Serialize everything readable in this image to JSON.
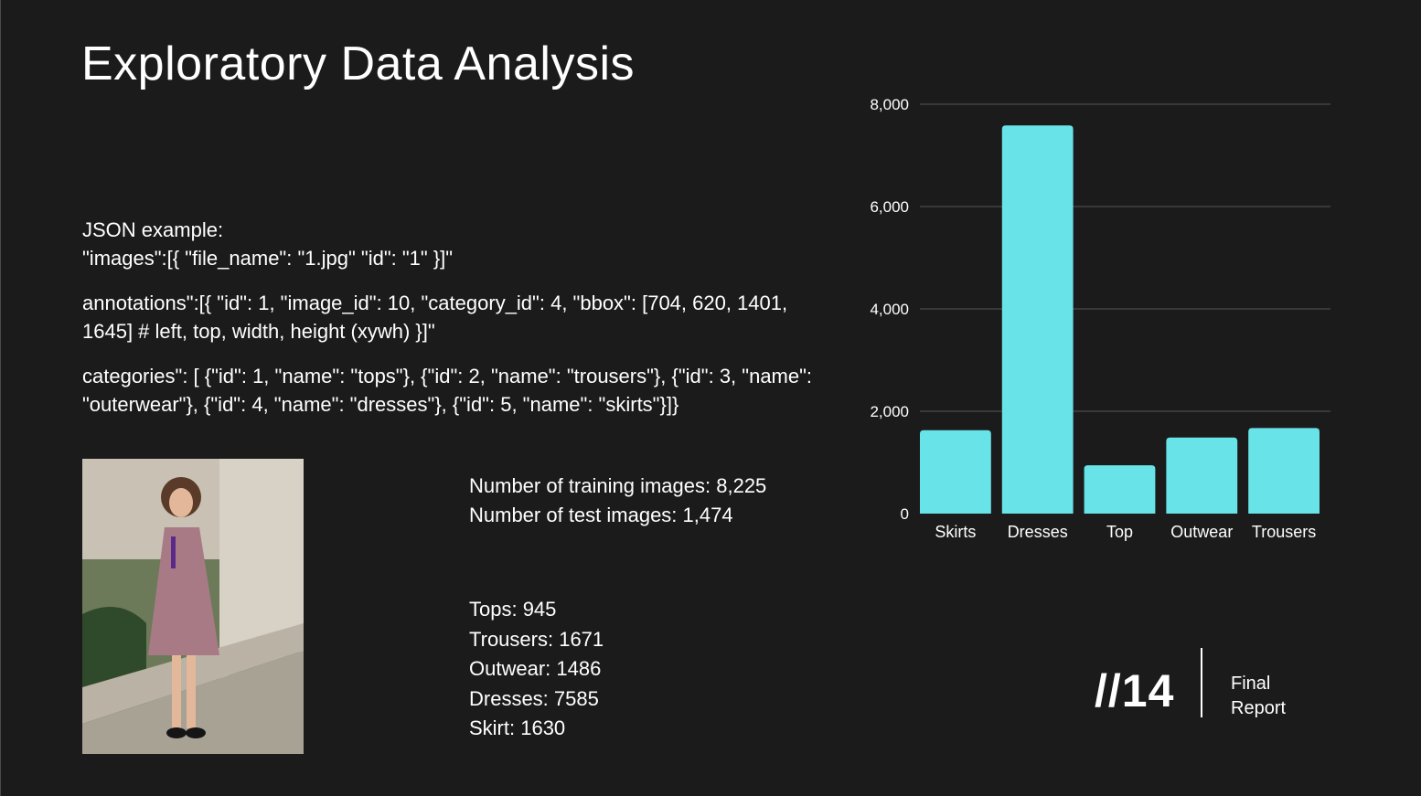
{
  "slide": {
    "title": "Exploratory Data Analysis"
  },
  "json_example": {
    "heading": "JSON example:",
    "images_line": "\"images\":[{ \"file_name\": \"1.jpg\" \"id\": \"1\" }]\"",
    "annotations_line": "annotations\":[{ \"id\": 1, \"image_id\": 10, \"category_id\": 4, \"bbox\": [704, 620, 1401, 1645] # left, top, width, height (xywh) }]\"",
    "categories_line": "categories\": [ {\"id\": 1, \"name\": \"tops\"}, {\"id\": 2, \"name\": \"trousers\"}, {\"id\": 3, \"name\": \"outerwear\"}, {\"id\": 4, \"name\": \"dresses\"}, {\"id\": 5, \"name\": \"skirts\"}]}"
  },
  "stats": {
    "training": "Number of training images: 8,225",
    "test": "Number of test images: 1,474"
  },
  "counts": [
    "Tops: 945",
    "Trousers: 1671",
    "Outwear: 1486",
    "Dresses: 7585",
    "Skirt: 1630"
  ],
  "footer": {
    "page": "//14",
    "label_line1": "Final",
    "label_line2": "Report"
  },
  "photo": {
    "icon": "sample-photo-icon"
  },
  "colors": {
    "background": "#1b1b1b",
    "bar": "#68e4e8",
    "grid": "#555555",
    "text": "#ffffff"
  },
  "chart_data": {
    "type": "bar",
    "categories": [
      "Skirts",
      "Dresses",
      "Top",
      "Outwear",
      "Trousers"
    ],
    "values": [
      1630,
      7585,
      945,
      1486,
      1671
    ],
    "ylim": [
      0,
      8000
    ],
    "yticks": [
      0,
      2000,
      4000,
      6000,
      8000
    ],
    "ytick_labels": [
      "0",
      "2,000",
      "4,000",
      "6,000",
      "8,000"
    ],
    "grid": true,
    "title": "",
    "xlabel": "",
    "ylabel": ""
  }
}
